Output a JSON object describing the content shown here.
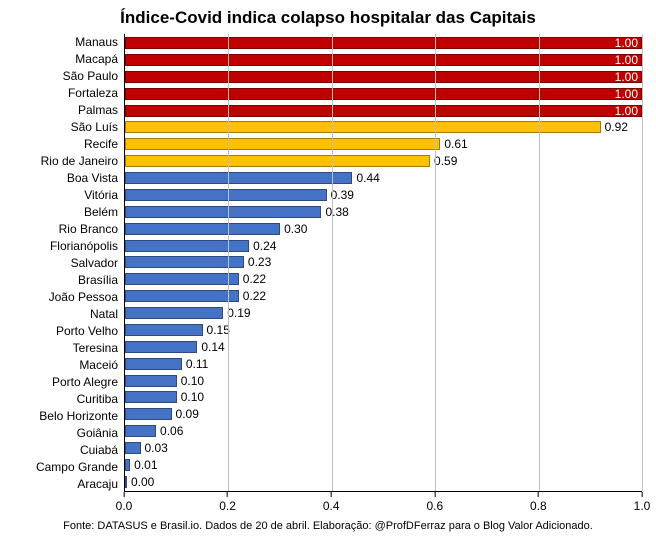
{
  "chart": {
    "type": "bar-horizontal",
    "title": "Índice-Covid indica colapso hospitalar das Capitais",
    "title_fontsize": 17,
    "label_fontsize": 12,
    "value_fontsize": 12,
    "xtick_fontsize": 12,
    "footer_fontsize": 11,
    "background_color": "#ffffff",
    "grid_color": "#bfbfbf",
    "axis_color": "#000000",
    "xlim": [
      0.0,
      1.0
    ],
    "xtick_step": 0.2,
    "xticks": [
      "0.0",
      "0.2",
      "0.4",
      "0.6",
      "0.8",
      "1.0"
    ],
    "categories": [
      "Manaus",
      "Macapá",
      "São Paulo",
      "Fortaleza",
      "Palmas",
      "São Luís",
      "Recife",
      "Rio de Janeiro",
      "Boa Vista",
      "Vitória",
      "Belém",
      "Rio Branco",
      "Florianópolis",
      "Salvador",
      "Brasília",
      "João Pessoa",
      "Natal",
      "Porto Velho",
      "Teresina",
      "Maceió",
      "Porto Alegre",
      "Curitiba",
      "Belo Horizonte",
      "Goiânia",
      "Cuiabá",
      "Campo Grande",
      "Aracaju"
    ],
    "values": [
      1.0,
      1.0,
      1.0,
      1.0,
      1.0,
      0.92,
      0.61,
      0.59,
      0.44,
      0.39,
      0.38,
      0.3,
      0.24,
      0.23,
      0.22,
      0.22,
      0.19,
      0.15,
      0.14,
      0.11,
      0.1,
      0.1,
      0.09,
      0.06,
      0.03,
      0.01,
      0.0
    ],
    "value_labels": [
      "1.00",
      "1.00",
      "1.00",
      "1.00",
      "1.00",
      "0.92",
      "0.61",
      "0.59",
      "0.44",
      "0.39",
      "0.38",
      "0.30",
      "0.24",
      "0.23",
      "0.22",
      "0.22",
      "0.19",
      "0.15",
      "0.14",
      "0.11",
      "0.10",
      "0.10",
      "0.09",
      "0.06",
      "0.03",
      "0.01",
      "0.00"
    ],
    "bar_colors": [
      "#c00000",
      "#c00000",
      "#c00000",
      "#c00000",
      "#c00000",
      "#ffc000",
      "#ffc000",
      "#ffc000",
      "#4472c4",
      "#4472c4",
      "#4472c4",
      "#4472c4",
      "#4472c4",
      "#4472c4",
      "#4472c4",
      "#4472c4",
      "#4472c4",
      "#4472c4",
      "#4472c4",
      "#4472c4",
      "#4472c4",
      "#4472c4",
      "#4472c4",
      "#4472c4",
      "#4472c4",
      "#4472c4",
      "#4472c4"
    ],
    "footer": "Fonte: DATASUS e Brasil.io. Dados de 20 de abril. Elaboração: @ProfDFerraz para o Blog Valor Adicionado."
  }
}
